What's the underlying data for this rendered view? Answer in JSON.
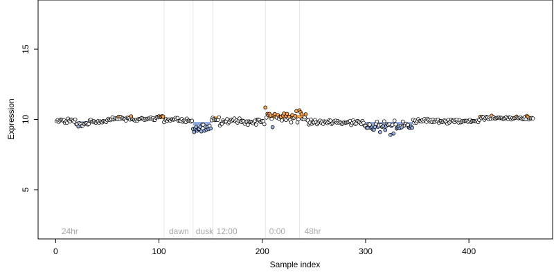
{
  "chart_data": {
    "type": "scatter",
    "xlabel": "Sample index",
    "ylabel": "Expression",
    "xlim": [
      -17,
      481
    ],
    "ylim": [
      1.5,
      18.5
    ],
    "x_ticks": [
      0,
      100,
      200,
      300,
      400
    ],
    "y_ticks": [
      5,
      10,
      15
    ],
    "grid": false,
    "legend": "none",
    "colors": {
      "point_fill_default": "#ffffff",
      "point_fill_high": "#ffa64d",
      "point_fill_low": "#99b3e6",
      "point_stroke": "#000000",
      "segment_high": "#ffa64d",
      "segment_low": "#8fa8dd",
      "vline": "#e6e6e6",
      "annotation_text": "#a9a9a9",
      "axis": "#000000"
    },
    "vlines": [
      105,
      133,
      152,
      203,
      236
    ],
    "annotations": [
      {
        "x": 3,
        "label": "24hr"
      },
      {
        "x": 107,
        "label": "dawn"
      },
      {
        "x": 133,
        "label": "dusk"
      },
      {
        "x": 153,
        "label": "12:00"
      },
      {
        "x": 204,
        "label": "0:00"
      },
      {
        "x": 238,
        "label": "48hr"
      }
    ],
    "segments": [
      {
        "x0": 20,
        "x1": 32,
        "y": 9.75,
        "group": "low"
      },
      {
        "x0": 100,
        "x1": 104,
        "y": 10.15,
        "group": "high"
      },
      {
        "x0": 133,
        "x1": 150,
        "y": 9.7,
        "group": "low"
      },
      {
        "x0": 152,
        "x1": 157,
        "y": 10.1,
        "group": "high"
      },
      {
        "x0": 205,
        "x1": 243,
        "y": 10.2,
        "group": "high"
      },
      {
        "x0": 300,
        "x1": 345,
        "y": 9.7,
        "group": "low"
      },
      {
        "x0": 411,
        "x1": 462,
        "y": 10.1,
        "group": "high"
      }
    ],
    "series": [
      {
        "generator": "noisy-sequence",
        "count": 462,
        "seed": 17,
        "x_start": 1,
        "baseline": 9.9,
        "profile": [
          {
            "x0": 0,
            "x1": 19,
            "mean": 9.9,
            "sd": 0.1
          },
          {
            "x0": 20,
            "x1": 32,
            "mean": 9.65,
            "sd": 0.14
          },
          {
            "x0": 33,
            "x1": 49,
            "mean": 9.85,
            "sd": 0.1
          },
          {
            "x0": 50,
            "x1": 99,
            "mean": 10.05,
            "sd": 0.1
          },
          {
            "x0": 100,
            "x1": 104,
            "mean": 10.2,
            "sd": 0.06
          },
          {
            "x0": 105,
            "x1": 132,
            "mean": 9.95,
            "sd": 0.13
          },
          {
            "x0": 133,
            "x1": 150,
            "mean": 9.45,
            "sd": 0.2
          },
          {
            "x0": 151,
            "x1": 158,
            "mean": 10.05,
            "sd": 0.12
          },
          {
            "x0": 159,
            "x1": 202,
            "mean": 9.85,
            "sd": 0.15
          },
          {
            "x0": 203,
            "x1": 243,
            "mean": 10.15,
            "sd": 0.22
          },
          {
            "x0": 244,
            "x1": 299,
            "mean": 9.8,
            "sd": 0.13
          },
          {
            "x0": 300,
            "x1": 345,
            "mean": 9.55,
            "sd": 0.19
          },
          {
            "x0": 346,
            "x1": 410,
            "mean": 9.9,
            "sd": 0.11
          },
          {
            "x0": 411,
            "x1": 462,
            "mean": 10.1,
            "sd": 0.1
          }
        ],
        "highlight_points": [
          {
            "x": 134,
            "y": 9.1
          },
          {
            "x": 137,
            "y": 9.2
          },
          {
            "x": 141,
            "y": 9.15
          },
          {
            "x": 203,
            "y": 10.85
          },
          {
            "x": 207,
            "y": 10.4
          },
          {
            "x": 210,
            "y": 9.45
          },
          {
            "x": 233,
            "y": 10.6
          },
          {
            "x": 236,
            "y": 10.65
          },
          {
            "x": 314,
            "y": 9.1
          },
          {
            "x": 324,
            "y": 8.9
          },
          {
            "x": 327,
            "y": 9.0
          }
        ]
      }
    ]
  }
}
